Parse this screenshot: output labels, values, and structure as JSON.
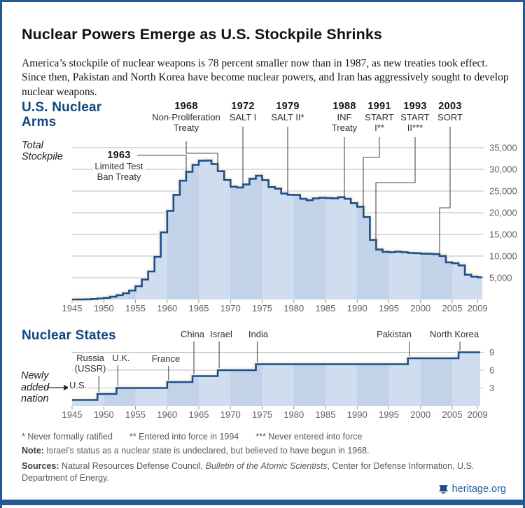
{
  "page": {
    "title": "Nuclear Powers Emerge as U.S. Stockpile Shrinks",
    "subtitle": "America’s stockpile of nuclear weapons is 78 percent smaller now than in 1987, as new treaties took effect. Since then, Pakistan and North Korea have become nuclear powers, and Iran has aggressively sought to develop nuclear weapons.",
    "brand": "heritage.org",
    "colors": {
      "accent_blue": "#10497f",
      "line_blue": "#1d4f8c",
      "fill_light": "#cfddee",
      "fill_dark": "#c2d2e8",
      "glow": "#f6eedb",
      "frame": "#245a92",
      "gridline": "#b9baba",
      "tick_text": "#5f6062",
      "pointer": "#4c4c4c"
    }
  },
  "chart_data": [
    {
      "type": "area",
      "title": "U.S. Nuclear Arms",
      "ylabel": "Total Stockpile",
      "years": [
        1945,
        1946,
        1947,
        1948,
        1949,
        1950,
        1951,
        1952,
        1953,
        1954,
        1955,
        1956,
        1957,
        1958,
        1959,
        1960,
        1961,
        1962,
        1963,
        1964,
        1965,
        1966,
        1967,
        1968,
        1969,
        1970,
        1971,
        1972,
        1973,
        1974,
        1975,
        1976,
        1977,
        1978,
        1979,
        1980,
        1981,
        1982,
        1983,
        1984,
        1985,
        1986,
        1987,
        1988,
        1989,
        1990,
        1991,
        1992,
        1993,
        1994,
        1995,
        1996,
        1997,
        1998,
        1999,
        2000,
        2001,
        2002,
        2003,
        2004,
        2005,
        2006,
        2007,
        2008,
        2009
      ],
      "values": [
        6,
        11,
        32,
        110,
        235,
        369,
        640,
        1005,
        1436,
        2063,
        3057,
        4618,
        6444,
        9822,
        15468,
        20434,
        24126,
        27387,
        29459,
        31056,
        31982,
        32040,
        31233,
        29561,
        27552,
        26008,
        25830,
        26516,
        27835,
        28537,
        27519,
        25914,
        25542,
        24418,
        24138,
        24104,
        23208,
        22886,
        23305,
        23459,
        23368,
        23317,
        23575,
        23205,
        22217,
        21392,
        19008,
        13708,
        11511,
        10979,
        10904,
        11011,
        10903,
        10732,
        10685,
        10577,
        10526,
        10457,
        10027,
        8570,
        8360,
        7853,
        5709,
        5273,
        5113
      ],
      "ylim": [
        0,
        35000
      ],
      "yticks": [
        5000,
        10000,
        15000,
        20000,
        25000,
        30000,
        35000
      ],
      "xticks": [
        1945,
        1950,
        1955,
        1960,
        1965,
        1970,
        1975,
        1980,
        1985,
        1990,
        1995,
        2000,
        2005,
        2009
      ],
      "grid": true,
      "annotations": [
        {
          "year": "1963",
          "lines": [
            "Limited Test",
            "Ban Treaty"
          ]
        },
        {
          "year": "1968",
          "lines": [
            "Non-Proliferation",
            "Treaty"
          ]
        },
        {
          "year": "1972",
          "lines": [
            "SALT I"
          ]
        },
        {
          "year": "1979",
          "lines": [
            "SALT II*"
          ]
        },
        {
          "year": "1988",
          "lines": [
            "INF",
            "Treaty"
          ]
        },
        {
          "year": "1991",
          "lines": [
            "START",
            "I**"
          ]
        },
        {
          "year": "1993",
          "lines": [
            "START",
            "II***"
          ]
        },
        {
          "year": "2003",
          "lines": [
            "SORT"
          ]
        }
      ]
    },
    {
      "type": "step-area",
      "title": "Nuclear States",
      "left_label": "Newly added nation",
      "events": [
        {
          "year": 1945,
          "country": "U.S.",
          "count": 1
        },
        {
          "year": 1949,
          "country": "Russia (USSR)",
          "count": 2
        },
        {
          "year": 1952,
          "country": "U.K.",
          "count": 3
        },
        {
          "year": 1960,
          "country": "France",
          "count": 4
        },
        {
          "year": 1964,
          "country": "China",
          "count": 5
        },
        {
          "year": 1968,
          "country": "Israel",
          "count": 6
        },
        {
          "year": 1974,
          "country": "India",
          "count": 7
        },
        {
          "year": 1998,
          "country": "Pakistan",
          "count": 8
        },
        {
          "year": 2006,
          "country": "North Korea",
          "count": 9
        }
      ],
      "ylim": [
        0,
        9
      ],
      "yticks": [
        3,
        6,
        9
      ],
      "xticks": [
        1945,
        1950,
        1955,
        1960,
        1965,
        1970,
        1975,
        1980,
        1985,
        1990,
        1995,
        2000,
        2005,
        2009
      ],
      "grid": true
    }
  ],
  "footnotes": {
    "items": [
      "* Never formally ratified",
      "** Entered into force in 1994",
      "*** Never entered into force"
    ],
    "note_label": "Note:",
    "note_text": " Israel’s status as a nuclear state is undeclared, but believed to have begun in 1968.",
    "sources_label": "Sources:",
    "sources_pre": " Natural Resources Defense Council, ",
    "sources_italic": "Bulletin of the Atomic Scientists",
    "sources_post": ", Center for Defense Information, U.S. Department of Energy."
  }
}
